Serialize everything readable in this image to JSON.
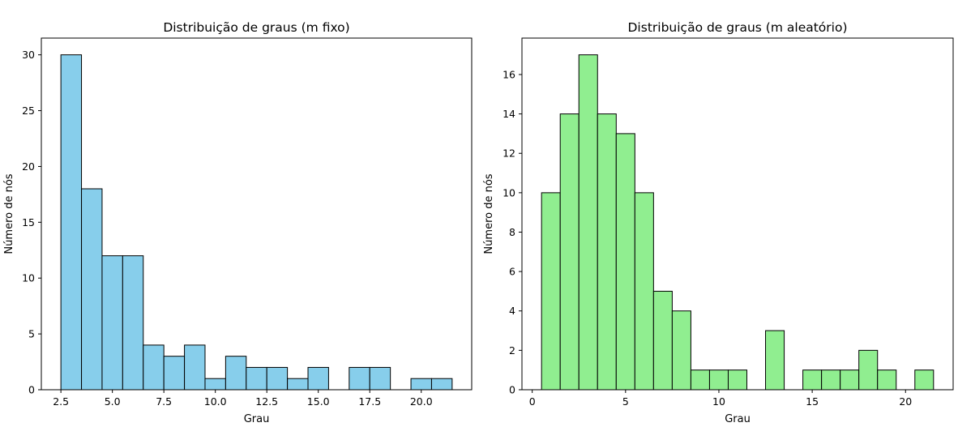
{
  "chart_data": [
    {
      "type": "bar",
      "title": "Distribuição de graus (m fixo)",
      "xlabel": "Grau",
      "ylabel": "Número de nós",
      "xlim": [
        1.55,
        22.45
      ],
      "ylim": [
        0,
        31.5
      ],
      "xticks": [
        2.5,
        5.0,
        7.5,
        10.0,
        12.5,
        15.0,
        17.5,
        20.0
      ],
      "xtick_labels": [
        "2.5",
        "5.0",
        "7.5",
        "10.0",
        "12.5",
        "15.0",
        "17.5",
        "20.0"
      ],
      "yticks": [
        0,
        5,
        10,
        15,
        20,
        25,
        30
      ],
      "ytick_labels": [
        "0",
        "5",
        "10",
        "15",
        "20",
        "25",
        "30"
      ],
      "bar_color": "#87ceeb",
      "edge_color": "#000000",
      "bins": [
        {
          "x0": 2.5,
          "x1": 3.5,
          "value": 30
        },
        {
          "x0": 3.5,
          "x1": 4.5,
          "value": 18
        },
        {
          "x0": 4.5,
          "x1": 5.5,
          "value": 12
        },
        {
          "x0": 5.5,
          "x1": 6.5,
          "value": 12
        },
        {
          "x0": 6.5,
          "x1": 7.5,
          "value": 4
        },
        {
          "x0": 7.5,
          "x1": 8.5,
          "value": 3
        },
        {
          "x0": 8.5,
          "x1": 9.5,
          "value": 4
        },
        {
          "x0": 9.5,
          "x1": 10.5,
          "value": 1
        },
        {
          "x0": 10.5,
          "x1": 11.5,
          "value": 3
        },
        {
          "x0": 11.5,
          "x1": 12.5,
          "value": 2
        },
        {
          "x0": 12.5,
          "x1": 13.5,
          "value": 2
        },
        {
          "x0": 13.5,
          "x1": 14.5,
          "value": 1
        },
        {
          "x0": 14.5,
          "x1": 15.5,
          "value": 2
        },
        {
          "x0": 15.5,
          "x1": 16.5,
          "value": 0
        },
        {
          "x0": 16.5,
          "x1": 17.5,
          "value": 2
        },
        {
          "x0": 17.5,
          "x1": 18.5,
          "value": 2
        },
        {
          "x0": 18.5,
          "x1": 19.5,
          "value": 0
        },
        {
          "x0": 19.5,
          "x1": 20.5,
          "value": 1
        },
        {
          "x0": 20.5,
          "x1": 21.5,
          "value": 1
        }
      ]
    },
    {
      "type": "bar",
      "title": "Distribuição de graus (m aleatório)",
      "xlabel": "Grau",
      "ylabel": "Número de nós",
      "xlim": [
        -0.55,
        22.55
      ],
      "ylim": [
        0,
        17.85
      ],
      "xticks": [
        0,
        5,
        10,
        15,
        20
      ],
      "xtick_labels": [
        "0",
        "5",
        "10",
        "15",
        "20"
      ],
      "yticks": [
        0,
        2,
        4,
        6,
        8,
        10,
        12,
        14,
        16
      ],
      "ytick_labels": [
        "0",
        "2",
        "4",
        "6",
        "8",
        "10",
        "12",
        "14",
        "16"
      ],
      "bar_color": "#90ee90",
      "edge_color": "#000000",
      "bins": [
        {
          "x0": 0.5,
          "x1": 1.5,
          "value": 10
        },
        {
          "x0": 1.5,
          "x1": 2.5,
          "value": 14
        },
        {
          "x0": 2.5,
          "x1": 3.5,
          "value": 17
        },
        {
          "x0": 3.5,
          "x1": 4.5,
          "value": 14
        },
        {
          "x0": 4.5,
          "x1": 5.5,
          "value": 13
        },
        {
          "x0": 5.5,
          "x1": 6.5,
          "value": 10
        },
        {
          "x0": 6.5,
          "x1": 7.5,
          "value": 5
        },
        {
          "x0": 7.5,
          "x1": 8.5,
          "value": 4
        },
        {
          "x0": 8.5,
          "x1": 9.5,
          "value": 1
        },
        {
          "x0": 9.5,
          "x1": 10.5,
          "value": 1
        },
        {
          "x0": 10.5,
          "x1": 11.5,
          "value": 1
        },
        {
          "x0": 11.5,
          "x1": 12.5,
          "value": 0
        },
        {
          "x0": 12.5,
          "x1": 13.5,
          "value": 3
        },
        {
          "x0": 13.5,
          "x1": 14.5,
          "value": 0
        },
        {
          "x0": 14.5,
          "x1": 15.5,
          "value": 1
        },
        {
          "x0": 15.5,
          "x1": 16.5,
          "value": 1
        },
        {
          "x0": 16.5,
          "x1": 17.5,
          "value": 1
        },
        {
          "x0": 17.5,
          "x1": 18.5,
          "value": 2
        },
        {
          "x0": 18.5,
          "x1": 19.5,
          "value": 1
        },
        {
          "x0": 19.5,
          "x1": 20.5,
          "value": 0
        },
        {
          "x0": 20.5,
          "x1": 21.5,
          "value": 1
        }
      ]
    }
  ]
}
